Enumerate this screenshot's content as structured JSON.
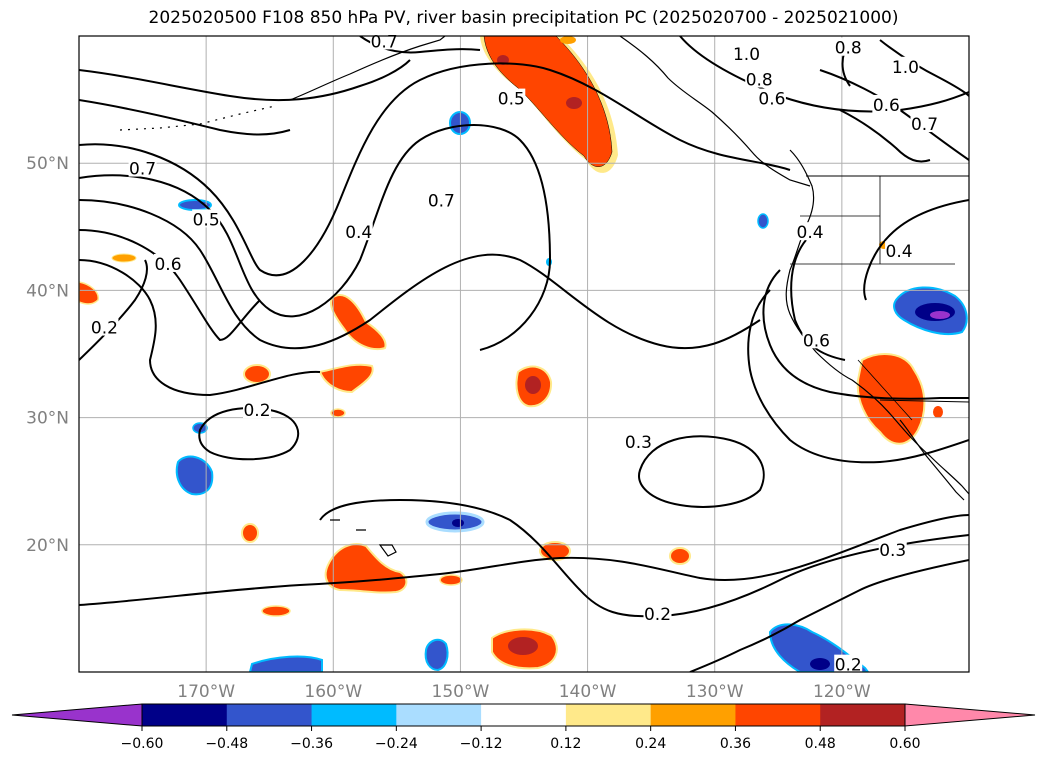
{
  "title": "2025020500 F108 850 hPa PV, river basin precipitation PC (2025020700 - 2025021000)",
  "chart_data": {
    "type": "contour map",
    "map": {
      "lon_range": [
        -180,
        -110
      ],
      "lat_range": [
        10,
        60
      ],
      "lat_ticks": [
        {
          "value": 20,
          "label": "20°N"
        },
        {
          "value": 30,
          "label": "30°N"
        },
        {
          "value": 40,
          "label": "40°N"
        },
        {
          "value": 50,
          "label": "50°N"
        }
      ],
      "lon_ticks": [
        {
          "value": -170,
          "label": "170°W"
        },
        {
          "value": -160,
          "label": "160°W"
        },
        {
          "value": -150,
          "label": "150°W"
        },
        {
          "value": -140,
          "label": "140°W"
        },
        {
          "value": -130,
          "label": "130°W"
        },
        {
          "value": -120,
          "label": "120°W"
        }
      ],
      "grid": true
    },
    "contour_labels": [
      {
        "lon": -156,
        "lat": 59.5,
        "text": "0.7"
      },
      {
        "lon": -127.5,
        "lat": 58.5,
        "text": "1.0"
      },
      {
        "lon": -126.5,
        "lat": 56.5,
        "text": "0.8"
      },
      {
        "lon": -125.5,
        "lat": 55,
        "text": "0.6"
      },
      {
        "lon": -119.5,
        "lat": 59,
        "text": "0.8"
      },
      {
        "lon": -115,
        "lat": 57.5,
        "text": "1.0"
      },
      {
        "lon": -116.5,
        "lat": 54.5,
        "text": "0.6"
      },
      {
        "lon": -113.5,
        "lat": 53,
        "text": "0.7"
      },
      {
        "lon": -146,
        "lat": 55,
        "text": "0.5"
      },
      {
        "lon": -175,
        "lat": 49.5,
        "text": "0.7"
      },
      {
        "lon": -170,
        "lat": 45.5,
        "text": "0.5"
      },
      {
        "lon": -158,
        "lat": 44.5,
        "text": "0.4"
      },
      {
        "lon": -151.5,
        "lat": 47,
        "text": "0.7"
      },
      {
        "lon": -173,
        "lat": 42,
        "text": "0.6"
      },
      {
        "lon": -122.5,
        "lat": 44.5,
        "text": "0.4"
      },
      {
        "lon": -115.5,
        "lat": 43,
        "text": "0.4"
      },
      {
        "lon": -178,
        "lat": 37,
        "text": "0.2"
      },
      {
        "lon": -122,
        "lat": 36,
        "text": "0.6"
      },
      {
        "lon": -166,
        "lat": 30.5,
        "text": "0.2"
      },
      {
        "lon": -136,
        "lat": 28,
        "text": "0.3"
      },
      {
        "lon": -116,
        "lat": 19.5,
        "text": "0.3"
      },
      {
        "lon": -134.5,
        "lat": 14.5,
        "text": "0.2"
      },
      {
        "lon": -119.5,
        "lat": 10.5,
        "text": "0.2"
      }
    ],
    "colorbar": {
      "levels": [
        -0.6,
        -0.48,
        -0.36,
        -0.24,
        -0.12,
        0.12,
        0.24,
        0.36,
        0.48,
        0.6
      ],
      "tick_labels": [
        "−0.60",
        "−0.48",
        "−0.36",
        "−0.24",
        "−0.12",
        "0.12",
        "0.24",
        "0.36",
        "0.48",
        "0.60"
      ],
      "colors": [
        "#9933cc",
        "#000088",
        "#3355cc",
        "#00bbff",
        "#aaddff",
        "#ffffff",
        "#ffe98a",
        "#ffa000",
        "#ff4500",
        "#b22222",
        "#ff88aa"
      ],
      "extend": "both"
    }
  },
  "colors": {
    "grid": "#b0b0b0",
    "contour": "#000000",
    "coast": "#000000",
    "tick_label": "#808080"
  }
}
